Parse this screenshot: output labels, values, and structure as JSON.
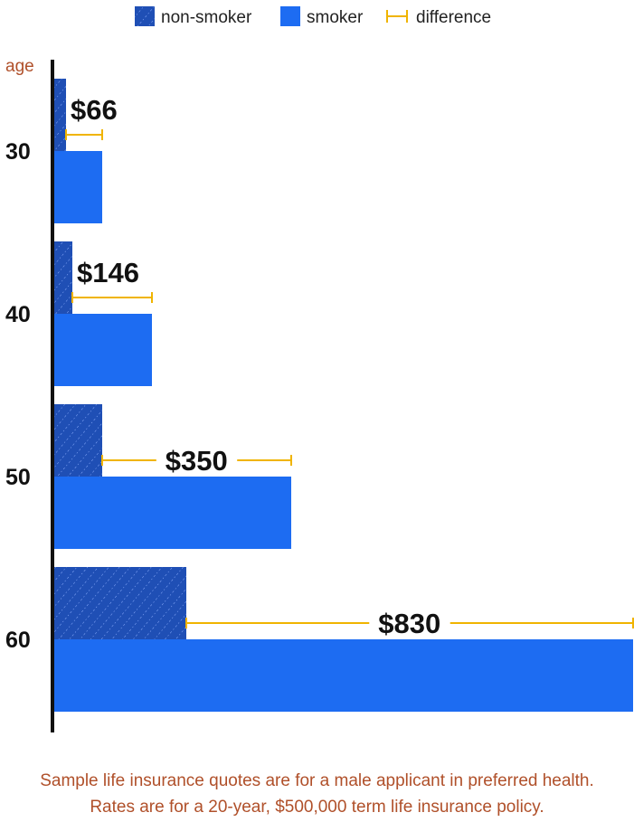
{
  "chart_data": {
    "type": "bar",
    "orientation": "horizontal",
    "y_axis_title": "age",
    "categories": [
      "30",
      "40",
      "50",
      "60"
    ],
    "series": [
      {
        "name": "non-smoker",
        "values": [
          13,
          20,
          53,
          146
        ]
      },
      {
        "name": "smoker",
        "values": [
          53,
          108,
          262,
          640
        ]
      }
    ],
    "differences": [
      {
        "category": "30",
        "label": "$66"
      },
      {
        "category": "40",
        "label": "$146"
      },
      {
        "category": "50",
        "label": "$350"
      },
      {
        "category": "60",
        "label": "$830"
      }
    ],
    "legend": {
      "position": "top",
      "items": [
        "non-smoker",
        "smoker",
        "difference"
      ]
    },
    "colors": {
      "non_smoker": "#1f4fb5",
      "smoker": "#1d6cf2",
      "difference": "#f0b400",
      "axis": "#111111",
      "note": "#b0502a"
    },
    "xlim": [
      0,
      640
    ],
    "grid": false
  },
  "footnote": {
    "line1": "Sample life insurance quotes are for a male applicant in preferred health.",
    "line2": "Rates are for a 20-year, $500,000 term life insurance policy."
  }
}
